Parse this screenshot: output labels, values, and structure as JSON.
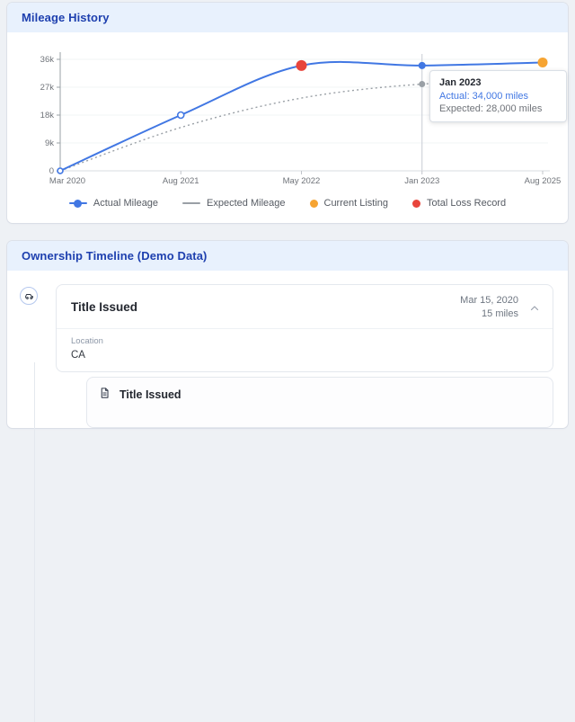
{
  "mileage_card": {
    "title": "Mileage History"
  },
  "chart_data": {
    "type": "line",
    "title": "Mileage History",
    "categories": [
      "Mar 2020",
      "Aug 2021",
      "May 2022",
      "Jan 2023",
      "Aug 2025"
    ],
    "series": [
      {
        "name": "Actual Mileage",
        "color": "#4177e3",
        "style": "solid",
        "values": [
          0,
          18000,
          34000,
          34000,
          35000
        ]
      },
      {
        "name": "Expected Mileage",
        "color": "#9aa0a6",
        "style": "dotted",
        "values": [
          0,
          14000,
          23500,
          28000,
          29000
        ]
      }
    ],
    "ylim": [
      0,
      36000
    ],
    "yticks": [
      {
        "value": 0,
        "label": "0"
      },
      {
        "value": 9000,
        "label": "9k"
      },
      {
        "value": 18000,
        "label": "18k"
      },
      {
        "value": 27000,
        "label": "27k"
      },
      {
        "value": 36000,
        "label": "36k"
      }
    ],
    "markers": [
      {
        "series": 1,
        "index": 3,
        "style": "filled",
        "color": "#9aa0a6",
        "r": 3.5
      },
      {
        "series": 0,
        "index": 0,
        "style": "open",
        "color": "#4177e3",
        "r": 3
      },
      {
        "series": 0,
        "index": 1,
        "style": "open",
        "color": "#4177e3",
        "r": 3.5
      },
      {
        "series": 0,
        "index": 2,
        "style": "filled",
        "color": "#e8453c",
        "r": 6
      },
      {
        "series": 0,
        "index": 3,
        "style": "filled",
        "color": "#4177e3",
        "r": 4
      },
      {
        "series": 0,
        "index": 4,
        "style": "filled",
        "color": "#f6a432",
        "r": 5.5
      }
    ],
    "crosshair_index": 3,
    "tooltip": {
      "title": "Jan 2023",
      "actual": "Actual: 34,000 miles",
      "expected": "Expected: 28,000 miles",
      "actual_color": "#4177e3"
    },
    "legend": [
      {
        "label": "Actual Mileage",
        "swatch": "line-dot",
        "color": "#4177e3"
      },
      {
        "label": "Expected Mileage",
        "swatch": "line",
        "color": "#9aa0a6"
      },
      {
        "label": "Current Listing",
        "swatch": "dot",
        "color": "#f6a432"
      },
      {
        "label": "Total Loss Record",
        "swatch": "dot",
        "color": "#e8453c"
      }
    ]
  },
  "ownership": {
    "title": "Ownership Timeline (Demo Data)",
    "items": [
      {
        "title": "Title Issued",
        "date": "Mar 15, 2020",
        "miles": "15 miles",
        "location_label": "Location",
        "location": "CA",
        "sub_events": [
          {
            "title": "Title Issued"
          }
        ]
      }
    ]
  },
  "colors": {
    "header_band": "#e8f1fd",
    "header_text": "#1e40af",
    "actual_blue": "#4177e3",
    "expected_gray": "#9aa0a6",
    "listing_orange": "#f6a432",
    "loss_red": "#e8453c"
  }
}
